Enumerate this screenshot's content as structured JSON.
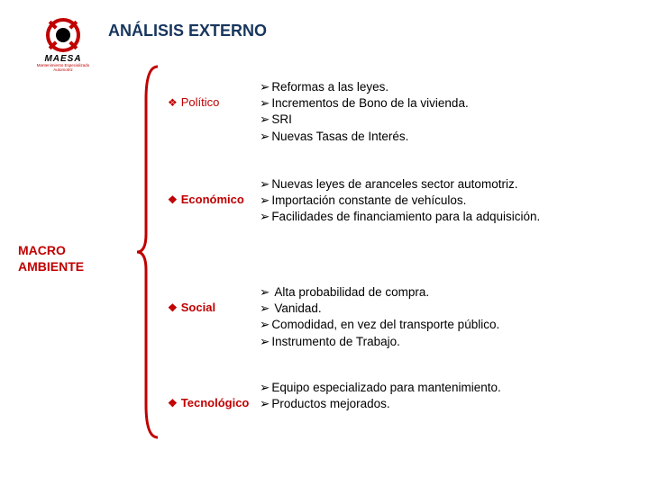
{
  "title": "ANÁLISIS  EXTERNO",
  "logo": {
    "text": "MAESA",
    "sub": "Mantenimiento Especializado Automotriz"
  },
  "macro": {
    "line1": "MACRO",
    "line2": "AMBIENTE"
  },
  "colors": {
    "accent": "#c00000",
    "title": "#17365d",
    "text": "#000000",
    "background": "#ffffff"
  },
  "bullets": {
    "diamond": "❖",
    "arrow": "➢"
  },
  "categories": [
    {
      "label": "Político",
      "bold": false,
      "items": [
        "Reformas a las leyes.",
        "Incrementos de Bono de la vivienda.",
        "SRI",
        "Nuevas Tasas de Interés."
      ]
    },
    {
      "label": "Económico",
      "bold": true,
      "items": [
        "Nuevas leyes de aranceles sector automotriz.",
        "Importación constante de vehículos.",
        "Facilidades de financiamiento para la adquisición."
      ]
    },
    {
      "label": "Social",
      "bold": true,
      "items_spaced_first": true,
      "items": [
        "Alta probabilidad de compra.",
        "Vanidad.",
        "Comodidad, en vez del transporte público.",
        "Instrumento de Trabajo."
      ]
    },
    {
      "label": "Tecnológico",
      "bold": true,
      "items": [
        "Equipo especializado para mantenimiento.",
        "Productos mejorados."
      ]
    }
  ]
}
